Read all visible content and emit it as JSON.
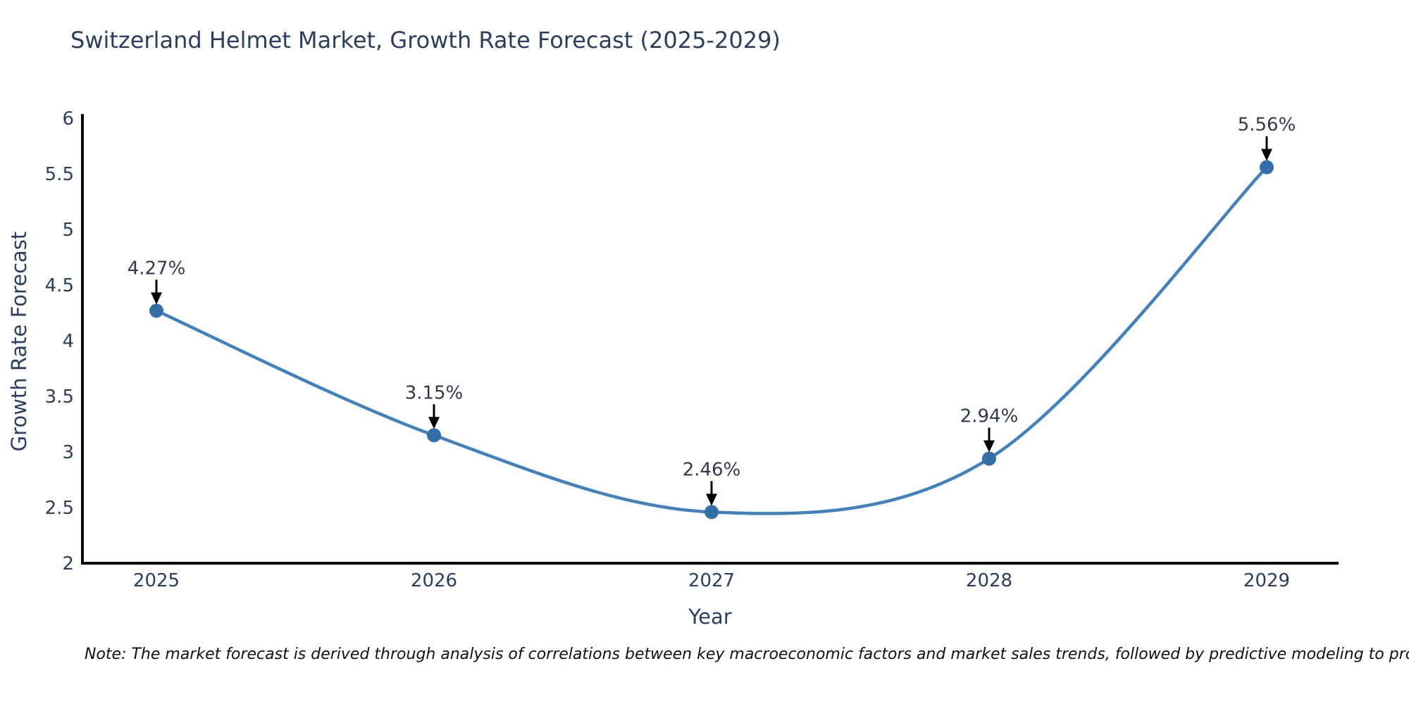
{
  "chart_data": {
    "type": "line",
    "title": "Switzerland Helmet Market, Growth Rate Forecast (2025-2029)",
    "xlabel": "Year",
    "ylabel": "Growth Rate Forecast",
    "categories": [
      "2025",
      "2026",
      "2027",
      "2028",
      "2029"
    ],
    "x": [
      2025,
      2026,
      2027,
      2028,
      2029
    ],
    "values": [
      4.27,
      3.15,
      2.46,
      2.94,
      5.56
    ],
    "data_labels": [
      "4.27%",
      "3.15%",
      "2.46%",
      "2.94%",
      "5.56%"
    ],
    "ylim": [
      2,
      6
    ],
    "yticks": [
      2,
      2.5,
      3,
      3.5,
      4,
      4.5,
      5,
      5.5,
      6
    ],
    "ytick_labels": [
      "2",
      "2.5",
      "3",
      "3.5",
      "4",
      "4.5",
      "5",
      "5.5",
      "6"
    ],
    "line_shape": "spline",
    "grid": false,
    "legend": "none",
    "annotation_style": "arrow-down-to-point",
    "colors": {
      "line": "#4181bd",
      "marker": "#336fa7",
      "axis": "#000000",
      "arrow": "#000000",
      "tick_label": "#2a3f5f",
      "annotation_text": "#2f3a4c",
      "title": "#2a3f5f"
    }
  },
  "note": {
    "text": "Note: The market forecast is derived through analysis of correlations between key macroeconomic factors and market sales trends, followed by predictive modeling to project future sales"
  }
}
